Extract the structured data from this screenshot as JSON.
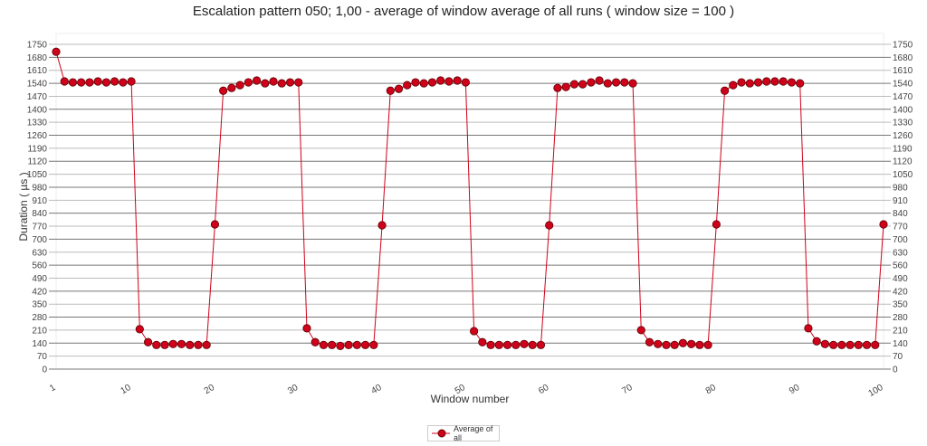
{
  "chart_data": {
    "type": "line",
    "title": "Escalation pattern 050; 1,00 - average of window average of all runs ( window size = 100 )",
    "xlabel": "Window number",
    "ylabel": "Duration ( µs )",
    "xlim": [
      1,
      100
    ],
    "ylim": [
      0,
      1750
    ],
    "yticks": [
      0,
      70,
      140,
      210,
      280,
      350,
      420,
      490,
      560,
      630,
      700,
      770,
      840,
      910,
      980,
      1050,
      1120,
      1190,
      1260,
      1330,
      1400,
      1470,
      1540,
      1610,
      1680,
      1750
    ],
    "xticks": [
      1,
      10,
      20,
      30,
      40,
      50,
      60,
      70,
      80,
      90,
      100
    ],
    "grid": true,
    "legend_position": "bottom",
    "series_color": "#d0021b",
    "series": [
      {
        "name": "Average of all",
        "values": [
          1710,
          1550,
          1545,
          1545,
          1545,
          1550,
          1545,
          1550,
          1545,
          1550,
          215,
          145,
          130,
          130,
          135,
          135,
          130,
          130,
          130,
          780,
          1500,
          1515,
          1530,
          1545,
          1555,
          1540,
          1550,
          1540,
          1545,
          1545,
          220,
          145,
          130,
          130,
          125,
          130,
          130,
          130,
          130,
          775,
          1500,
          1510,
          1530,
          1545,
          1540,
          1545,
          1555,
          1550,
          1555,
          1545,
          205,
          145,
          130,
          130,
          130,
          130,
          135,
          130,
          130,
          775,
          1515,
          1520,
          1535,
          1535,
          1545,
          1555,
          1540,
          1545,
          1545,
          1540,
          210,
          145,
          135,
          130,
          130,
          140,
          135,
          130,
          130,
          780,
          1500,
          1530,
          1545,
          1540,
          1545,
          1550,
          1550,
          1550,
          1545,
          1540,
          220,
          150,
          135,
          130,
          130,
          130,
          130,
          130,
          130,
          780
        ]
      }
    ]
  }
}
